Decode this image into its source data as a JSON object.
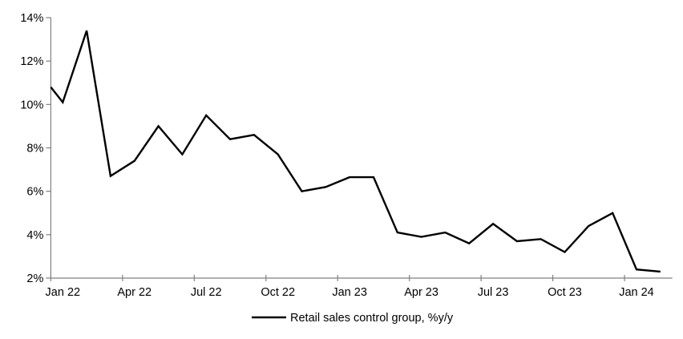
{
  "chart_data": {
    "type": "line",
    "title": "",
    "xlabel": "",
    "ylabel": "",
    "ylim": [
      2,
      14
    ],
    "grid": false,
    "legend_position": "bottom-center",
    "line_color": "#000000",
    "axis_color": "#808080",
    "lead_in_value_at_left_axis": 10.8,
    "y_tick_labels": [
      "14%",
      "12%",
      "10%",
      "8%",
      "6%",
      "4%",
      "2%"
    ],
    "y_tick_values": [
      14,
      12,
      10,
      8,
      6,
      4,
      2
    ],
    "x_tick_labels": [
      "Jan 22",
      "Apr 22",
      "Jul 22",
      "Oct 22",
      "Jan 23",
      "Apr 23",
      "Jul 23",
      "Oct 23",
      "Jan 24"
    ],
    "x_tick_month_indices": [
      0,
      3,
      6,
      9,
      12,
      15,
      18,
      21,
      24
    ],
    "series": [
      {
        "name": "Retail sales control group, %y/y",
        "x": [
          "Jan 22",
          "Feb 22",
          "Mar 22",
          "Apr 22",
          "May 22",
          "Jun 22",
          "Jul 22",
          "Aug 22",
          "Sep 22",
          "Oct 22",
          "Nov 22",
          "Dec 22",
          "Jan 23",
          "Feb 23",
          "Mar 23",
          "Apr 23",
          "May 23",
          "Jun 23",
          "Jul 23",
          "Aug 23",
          "Sep 23",
          "Oct 23",
          "Nov 23",
          "Dec 23",
          "Jan 24",
          "Feb 24"
        ],
        "values": [
          10.1,
          13.4,
          6.7,
          7.4,
          9.0,
          7.7,
          9.5,
          8.4,
          8.6,
          7.7,
          6.0,
          6.2,
          6.65,
          6.65,
          4.1,
          3.9,
          4.1,
          3.6,
          4.5,
          3.7,
          3.8,
          3.2,
          4.4,
          5.0,
          2.4,
          2.3
        ]
      }
    ]
  },
  "legend": {
    "label": "Retail sales control group, %y/y"
  }
}
